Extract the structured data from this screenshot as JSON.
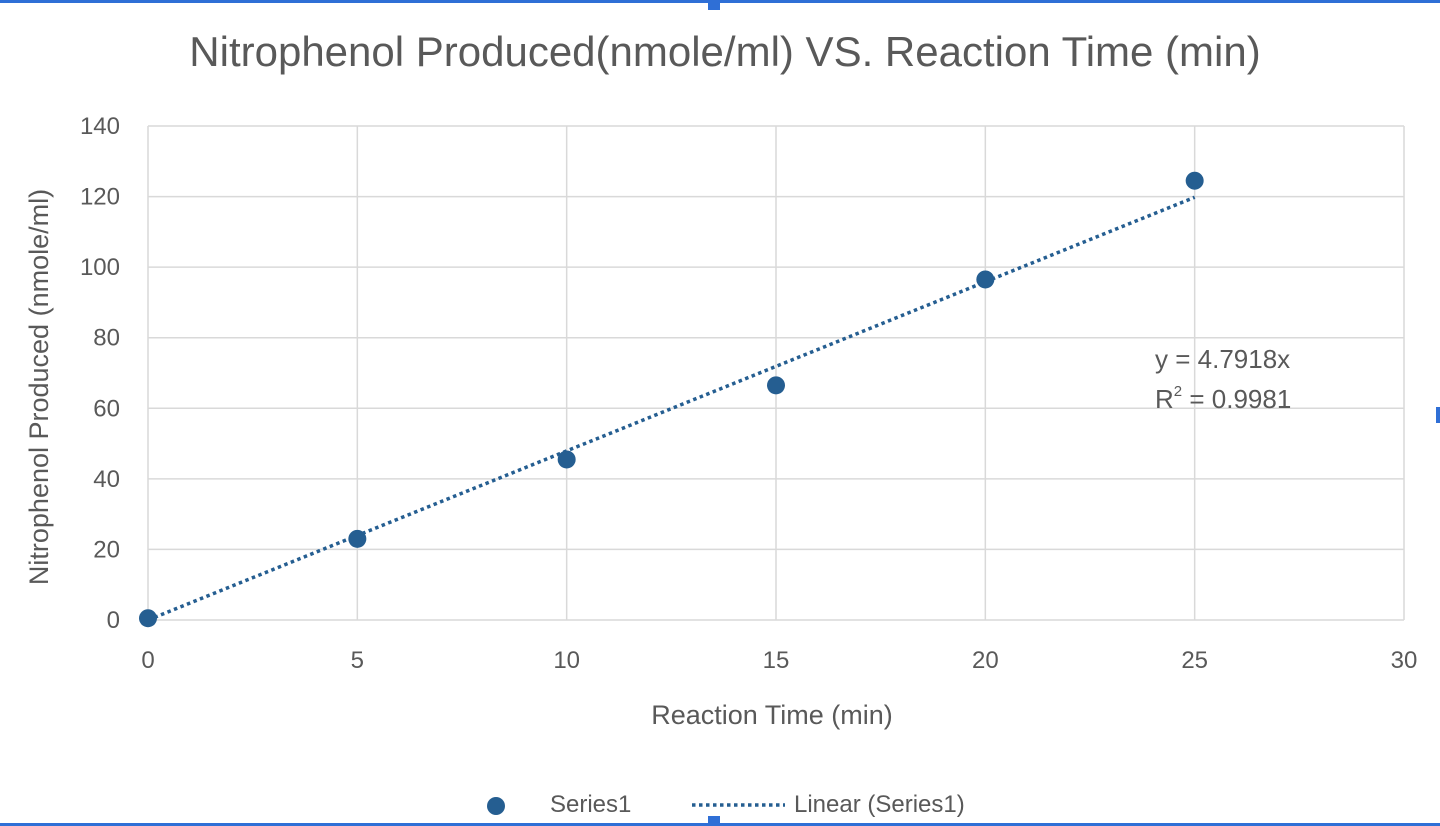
{
  "chart_data": {
    "type": "scatter",
    "title": "Nitrophenol Produced(nmole/ml) VS. Reaction Time (min)",
    "xlabel": "Reaction Time (min)",
    "ylabel": "Nitrophenol Produced (nmole/ml)",
    "xlim": [
      0,
      30
    ],
    "ylim": [
      0,
      140
    ],
    "xticks": [
      0,
      5,
      10,
      15,
      20,
      25,
      30
    ],
    "yticks": [
      0,
      20,
      40,
      60,
      80,
      100,
      120,
      140
    ],
    "grid": true,
    "series": [
      {
        "name": "Series1",
        "x": [
          0,
          5,
          10,
          15,
          20,
          25
        ],
        "y": [
          0.5,
          23,
          45.5,
          66.5,
          96.5,
          124.5
        ]
      }
    ],
    "trendline": {
      "name": "Linear (Series1)",
      "type": "linear",
      "slope": 4.7918,
      "x_range": [
        0,
        25
      ],
      "equation": "y = 4.7918x",
      "r2_prefix": "R",
      "r2_sup": "2",
      "r2_value": " = 0.9981"
    },
    "legend_position": "bottom",
    "colors": {
      "marker": "#255e91",
      "trendline": "#255e91",
      "grid": "#d9d9d9",
      "text": "#595959"
    }
  }
}
